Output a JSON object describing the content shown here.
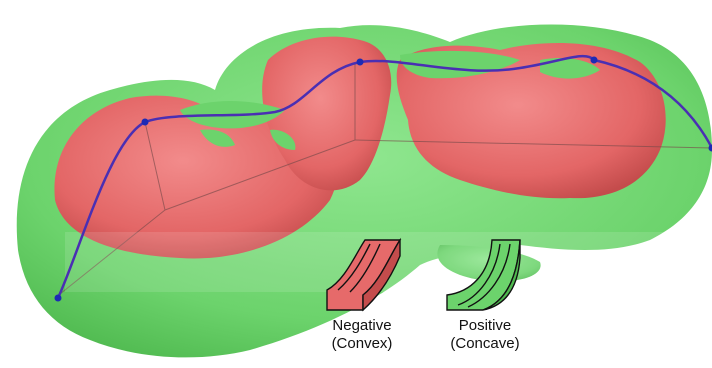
{
  "colors": {
    "negative": "#e66a6a",
    "positive": "#6cd36c",
    "curve": "#4a2fb3",
    "control_point": "#1d2ab5"
  },
  "legend": {
    "negative": {
      "line1": "Negative",
      "line2": "(Convex)"
    },
    "positive": {
      "line1": "Positive",
      "line2": "(Concave)"
    }
  }
}
